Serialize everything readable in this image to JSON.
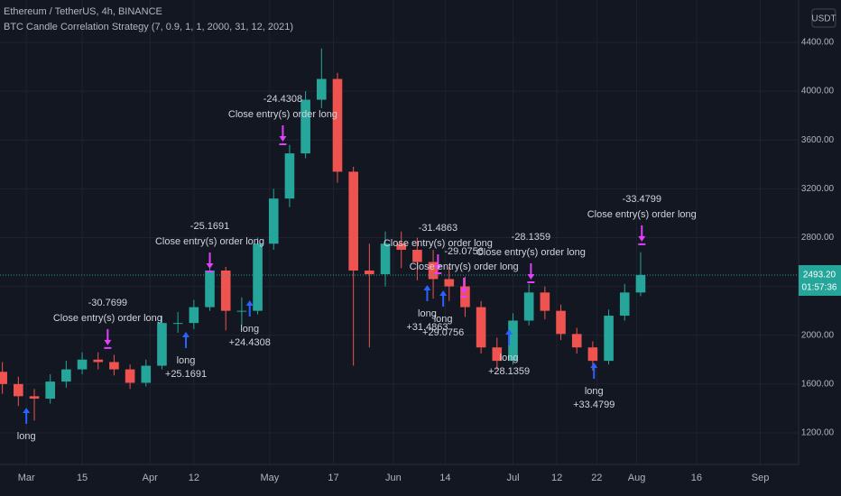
{
  "header": {
    "symbol": "Ethereum / TetherUS, 4h, BINANCE",
    "strategy": "BTC Candle Correlation Strategy (7, 0.9, 1, 1, 2000, 31, 12, 2021)",
    "currency": "USDT"
  },
  "chart_data": {
    "type": "candlestick",
    "x": [
      -6,
      -2,
      2,
      6,
      10,
      14,
      18,
      22,
      26,
      30,
      34,
      38,
      42,
      46,
      50,
      54,
      58,
      62,
      66,
      70,
      74,
      78,
      82,
      86,
      90,
      94,
      98,
      102,
      106,
      110,
      114,
      118,
      122,
      126,
      130,
      134,
      138,
      142,
      146,
      150,
      154
    ],
    "open": [
      1700,
      1600,
      1500,
      1480,
      1620,
      1720,
      1800,
      1780,
      1720,
      1610,
      1750,
      2100,
      2100,
      2230,
      2530,
      2200,
      2200,
      2750,
      3120,
      3490,
      3930,
      4100,
      3340,
      2530,
      2500,
      2750,
      2700,
      2600,
      2460,
      2400,
      2230,
      1900,
      1790,
      2120,
      2350,
      2200,
      2010,
      1900,
      1790,
      2160,
      2350
    ],
    "high": [
      1780,
      1660,
      1560,
      1680,
      1790,
      1860,
      1860,
      1840,
      1760,
      1800,
      2160,
      2190,
      2290,
      2620,
      2560,
      2310,
      2800,
      3200,
      3560,
      4000,
      4350,
      4150,
      3380,
      2750,
      2850,
      2850,
      2800,
      2700,
      2560,
      2480,
      2280,
      1980,
      2180,
      2420,
      2400,
      2250,
      2060,
      1950,
      2210,
      2420,
      2680
    ],
    "low": [
      1520,
      1420,
      1300,
      1440,
      1570,
      1680,
      1720,
      1670,
      1560,
      1580,
      1720,
      2020,
      2050,
      2200,
      2040,
      2080,
      2170,
      2700,
      3050,
      3450,
      3860,
      3250,
      1750,
      1900,
      2400,
      2550,
      2450,
      2300,
      2280,
      2150,
      1850,
      1720,
      1760,
      2080,
      2130,
      1960,
      1850,
      1710,
      1760,
      2120,
      2320
    ],
    "close": [
      1600,
      1500,
      1480,
      1620,
      1720,
      1800,
      1780,
      1720,
      1610,
      1750,
      2100,
      2100,
      2230,
      2530,
      2200,
      2200,
      2750,
      3120,
      3490,
      3930,
      4100,
      3340,
      2530,
      2500,
      2750,
      2700,
      2600,
      2460,
      2400,
      2230,
      1900,
      1790,
      2120,
      2350,
      2200,
      2010,
      1900,
      1790,
      2160,
      2350,
      2493.2
    ],
    "up_color": "#26a69a",
    "down_color": "#ef5350",
    "xlim": [
      -6.6,
      193.6
    ],
    "xticks": [
      {
        "value": 0,
        "label": "Mar"
      },
      {
        "value": 14,
        "label": "15"
      },
      {
        "value": 31,
        "label": "Apr"
      },
      {
        "value": 42,
        "label": "12"
      },
      {
        "value": 61,
        "label": "May"
      },
      {
        "value": 77,
        "label": "17"
      },
      {
        "value": 92,
        "label": "Jun"
      },
      {
        "value": 105,
        "label": "14"
      },
      {
        "value": 122,
        "label": "Jul"
      },
      {
        "value": 133,
        "label": "12"
      },
      {
        "value": 143,
        "label": "22"
      },
      {
        "value": 153,
        "label": "Aug"
      },
      {
        "value": 168,
        "label": "16"
      },
      {
        "value": 184,
        "label": "Sep"
      }
    ],
    "ylim": [
      941,
      4747
    ],
    "yticks": [
      {
        "value": 1200,
        "label": "1200.00"
      },
      {
        "value": 1600,
        "label": "1600.00"
      },
      {
        "value": 2000,
        "label": "2000.00"
      },
      {
        "value": 2400,
        "label": "2400.00"
      },
      {
        "value": 2800,
        "label": "2800.00"
      },
      {
        "value": 3200,
        "label": "3200.00"
      },
      {
        "value": 3600,
        "label": "3600.00"
      },
      {
        "value": 4000,
        "label": "4000.00"
      },
      {
        "value": 4400,
        "label": "4400.00"
      }
    ],
    "grid": true,
    "last_price": {
      "value": 2493.2,
      "label": "2493.20",
      "countdown": "01:57:36",
      "color": "#26a69a"
    },
    "signals": [
      {
        "kind": "long",
        "x": 0,
        "price": 1407,
        "lines": [
          "long"
        ]
      },
      {
        "kind": "close",
        "x": 20.4,
        "price": 1917,
        "lines": [
          "-30.7699",
          "Close entry(s) order long"
        ]
      },
      {
        "kind": "long",
        "x": 40,
        "price": 2027,
        "lines": [
          "long",
          "+25.1691"
        ]
      },
      {
        "kind": "close",
        "x": 46,
        "price": 2545,
        "lines": [
          "-25.1691",
          "Close entry(s) order long"
        ]
      },
      {
        "kind": "long",
        "x": 56,
        "price": 2286,
        "lines": [
          "long",
          "+24.4308"
        ]
      },
      {
        "kind": "close",
        "x": 64.3,
        "price": 3587,
        "lines": [
          "-24.4308",
          "Close entry(s) order long"
        ]
      },
      {
        "kind": "long",
        "x": 100.5,
        "price": 2412,
        "lines": [
          "long",
          "+31.4863"
        ]
      },
      {
        "kind": "close",
        "x": 103.2,
        "price": 2530,
        "lines": [
          "-31.4863",
          "Close entry(s) order long"
        ]
      },
      {
        "kind": "long",
        "x": 104.5,
        "price": 2367,
        "lines": [
          "long",
          "+29.0756"
        ]
      },
      {
        "kind": "close",
        "x": 109.7,
        "price": 2338,
        "lines": [
          "-29.0756",
          "Close entry(s) order long"
        ]
      },
      {
        "kind": "long",
        "x": 121,
        "price": 2050,
        "lines": [
          "long",
          "+28.1359"
        ]
      },
      {
        "kind": "close",
        "x": 126.5,
        "price": 2456,
        "lines": [
          "-28.1359",
          "Close entry(s) order long"
        ]
      },
      {
        "kind": "long",
        "x": 142.3,
        "price": 1776,
        "lines": [
          "long",
          "+33.4799"
        ]
      },
      {
        "kind": "close",
        "x": 154.3,
        "price": 2767,
        "lines": [
          "-33.4799",
          "Close entry(s) order long"
        ]
      }
    ],
    "long_color": "#2962ff",
    "close_color": "#e040fb"
  }
}
